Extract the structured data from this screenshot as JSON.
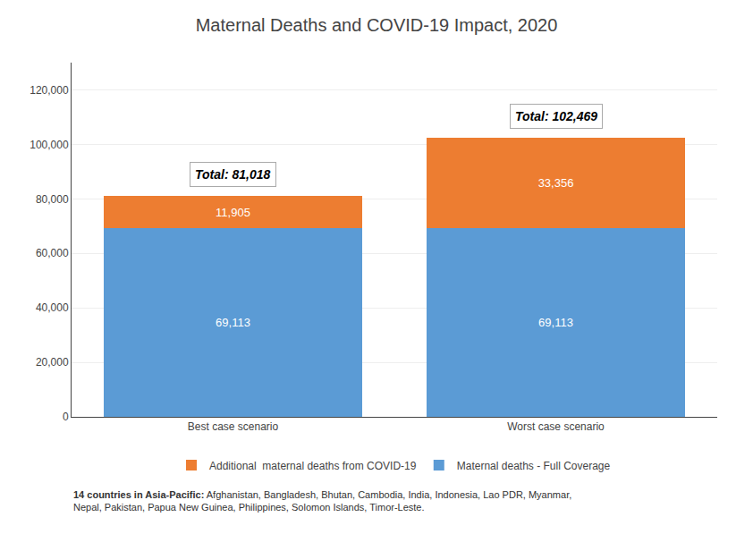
{
  "chart_data": {
    "type": "bar",
    "title": "Maternal Deaths and COVID-19 Impact, 2020",
    "categories": [
      "Best case scenario",
      "Worst case scenario"
    ],
    "series": [
      {
        "name": "Maternal deaths - Full Coverage",
        "color": "#5B9BD5",
        "values": [
          69113,
          69113
        ],
        "value_labels": [
          "69,113",
          "69,113"
        ]
      },
      {
        "name": "Additional  maternal deaths from COVID-19",
        "color": "#ED7D31",
        "values": [
          11905,
          33356
        ],
        "value_labels": [
          "11,905",
          "33,356"
        ]
      }
    ],
    "totals": [
      81018,
      102469
    ],
    "total_labels": [
      "Total: 81,018",
      "Total: 102,469"
    ],
    "stacked": true,
    "data_labels": true,
    "ylim": [
      0,
      130000
    ],
    "yticks": [
      0,
      {
        "value": 20000,
        "label": "20,000"
      },
      {
        "value": 40000,
        "label": "40,000"
      },
      {
        "value": 60000,
        "label": "60,000"
      },
      {
        "value": 80000,
        "label": "80,000"
      },
      {
        "value": 100000,
        "label": "100,000"
      },
      {
        "value": 120000,
        "label": "120,000"
      }
    ],
    "grid": true,
    "legend": "bottom",
    "footnote_bold": "14 countries in Asia-Pacific:",
    "footnote": " Afghanistan, Bangladesh, Bhutan, Cambodia, India, Indonesia, Lao PDR, Myanmar,\nNepal, Pakistan, Papua New Guinea, Philippines, Solomon Islands, Timor-Leste."
  }
}
